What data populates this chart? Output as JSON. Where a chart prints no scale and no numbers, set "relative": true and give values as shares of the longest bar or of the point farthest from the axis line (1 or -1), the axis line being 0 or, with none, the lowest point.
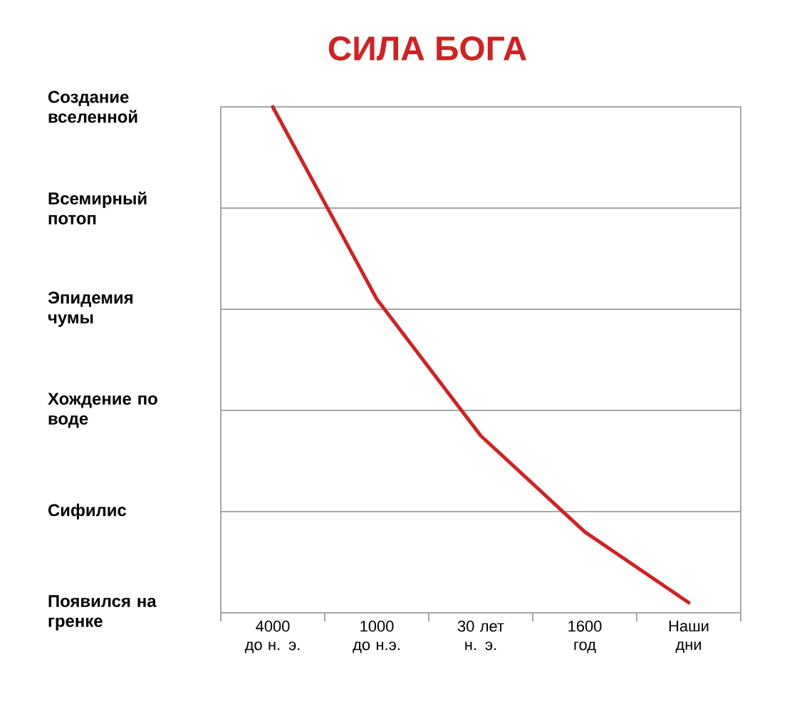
{
  "chart_data": {
    "type": "line",
    "title": "СИЛА БОГА",
    "categories": [
      "4000 до н. э.",
      "1000 до н.э.",
      "30 лет н. э.",
      "1600 год",
      "Наши дни"
    ],
    "values": [
      1.0,
      0.62,
      0.35,
      0.16,
      0.02
    ],
    "relative": true,
    "color": "#d42020",
    "annotations": [
      "Создание вселенной",
      "Всемирный потоп",
      "Эпидемия чумы",
      "Хождение по воде",
      "Сифилис",
      "Появился на гренке"
    ],
    "grid": "y"
  }
}
